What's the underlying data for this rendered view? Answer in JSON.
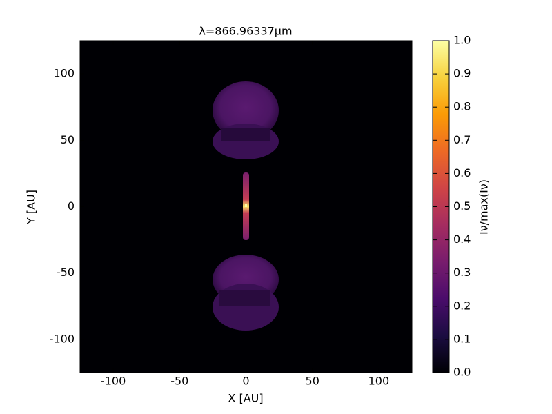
{
  "chart_data": {
    "type": "heatmap",
    "title": "λ=866.96337μm",
    "x_label": "X [AU]",
    "y_label": "Y [AU]",
    "xlim": [
      -125,
      125
    ],
    "ylim": [
      -125,
      125
    ],
    "xticks": [
      -100,
      -50,
      0,
      50,
      100
    ],
    "yticks": [
      -100,
      -50,
      0,
      50,
      100
    ],
    "colormap": "inferno",
    "colorbar": {
      "label": "Iν/max(Iν)",
      "lim": [
        0,
        1
      ],
      "ticks": [
        {
          "value": 0,
          "label": "0.0"
        },
        {
          "value": 0.1,
          "label": "0.1"
        },
        {
          "value": 0.2,
          "label": "0.2"
        },
        {
          "value": 0.3,
          "label": "0.3"
        },
        {
          "value": 0.4,
          "label": "0.4"
        },
        {
          "value": 0.5,
          "label": "0.5"
        },
        {
          "value": 0.6,
          "label": "0.6"
        },
        {
          "value": 0.7,
          "label": "0.7"
        },
        {
          "value": 0.8,
          "label": "0.8"
        },
        {
          "value": 0.9,
          "label": "0.9"
        },
        {
          "value": 1,
          "label": "1.0"
        }
      ]
    }
  }
}
